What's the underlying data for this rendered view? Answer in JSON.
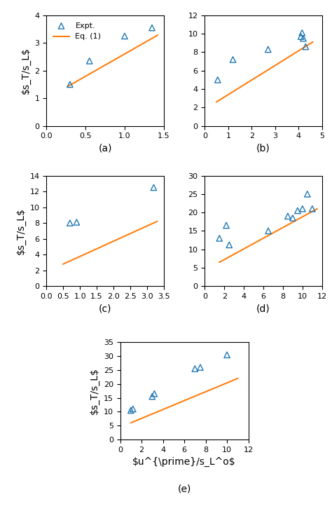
{
  "chart_data": [
    {
      "type": "scatter",
      "xlabel": "(a)",
      "ylabel": "$s_T/s_L$",
      "xlim": [
        0.0,
        1.5
      ],
      "ylim": [
        0.0,
        4.0
      ],
      "xticks": [
        {
          "value": 0,
          "label": "0.0"
        },
        0.5,
        {
          "value": 1,
          "label": "1.0"
        },
        1.5
      ],
      "yticks": [
        0,
        1,
        2,
        3,
        4
      ],
      "legend": "upper left",
      "series": [
        {
          "name": "Expt.",
          "type": "scatter",
          "marker": "triangle",
          "x": [
            0.3,
            0.55,
            1.0,
            1.35
          ],
          "values": [
            1.5,
            2.35,
            3.25,
            3.55
          ]
        },
        {
          "name": "Eq. (1)",
          "type": "line",
          "x": [
            0.28,
            1.42
          ],
          "values": [
            1.44,
            3.28
          ]
        }
      ]
    },
    {
      "type": "scatter",
      "xlabel": "(b)",
      "xlim": [
        0,
        5
      ],
      "ylim": [
        0,
        12
      ],
      "xticks": [
        0,
        1,
        2,
        3,
        4,
        5
      ],
      "yticks": [
        0,
        2,
        4,
        6,
        8,
        10,
        12
      ],
      "series": [
        {
          "type": "scatter",
          "marker": "triangle",
          "x": [
            0.55,
            1.2,
            2.7,
            4.1,
            4.15,
            4.2,
            4.3
          ],
          "values": [
            5.0,
            7.2,
            8.3,
            9.7,
            10.1,
            9.5,
            8.6
          ]
        },
        {
          "type": "line",
          "x": [
            0.5,
            4.6
          ],
          "values": [
            2.6,
            9.1
          ]
        }
      ]
    },
    {
      "type": "scatter",
      "xlabel": "(c)",
      "ylabel": "$s_T/s_L$",
      "xlim": [
        0.0,
        3.5
      ],
      "ylim": [
        0,
        14
      ],
      "xticks": [
        {
          "value": 0,
          "label": "0.0"
        },
        0.5,
        {
          "value": 1,
          "label": "1.0"
        },
        1.5,
        {
          "value": 2,
          "label": "2.0"
        },
        2.5,
        {
          "value": 3,
          "label": "3.0"
        },
        3.5
      ],
      "yticks": [
        0,
        2,
        4,
        6,
        8,
        10,
        12,
        14
      ],
      "series": [
        {
          "type": "scatter",
          "marker": "triangle",
          "x": [
            0.7,
            0.9,
            3.2
          ],
          "values": [
            8.0,
            8.1,
            12.5
          ]
        },
        {
          "type": "line",
          "x": [
            0.5,
            3.3
          ],
          "values": [
            2.8,
            8.2
          ]
        }
      ]
    },
    {
      "type": "scatter",
      "xlabel": "(d)",
      "xlim": [
        0,
        12
      ],
      "ylim": [
        0,
        30
      ],
      "xticks": [
        0,
        2,
        4,
        6,
        8,
        10,
        12
      ],
      "yticks": [
        0,
        5,
        10,
        15,
        20,
        25,
        30
      ],
      "series": [
        {
          "type": "scatter",
          "marker": "triangle",
          "x": [
            1.5,
            2.2,
            2.5,
            6.5,
            8.5,
            9.0,
            9.5,
            10.0,
            10.5,
            11.0
          ],
          "values": [
            13.0,
            16.5,
            11.2,
            15.0,
            19.0,
            18.5,
            20.5,
            21.0,
            25.0,
            21.0
          ]
        },
        {
          "type": "line",
          "x": [
            1.5,
            11.5
          ],
          "values": [
            6.5,
            21.0
          ]
        }
      ]
    },
    {
      "type": "scatter",
      "xlabel": "$u^{\\prime}/s_L^o$",
      "ylabel": "$s_T/s_L$",
      "annotation": "(e)",
      "xlim": [
        0,
        12
      ],
      "ylim": [
        0,
        35
      ],
      "xticks": [
        0,
        2,
        4,
        6,
        8,
        10,
        12
      ],
      "yticks": [
        0,
        5,
        10,
        15,
        20,
        25,
        30,
        35
      ],
      "series": [
        {
          "type": "scatter",
          "marker": "triangle",
          "x": [
            1.0,
            1.2,
            3.0,
            3.2,
            7.0,
            7.5,
            10.0
          ],
          "values": [
            10.5,
            11.0,
            15.5,
            16.5,
            25.5,
            26.0,
            30.5
          ]
        },
        {
          "type": "line",
          "x": [
            1.0,
            11.0
          ],
          "values": [
            6.0,
            22.0
          ]
        }
      ]
    }
  ]
}
